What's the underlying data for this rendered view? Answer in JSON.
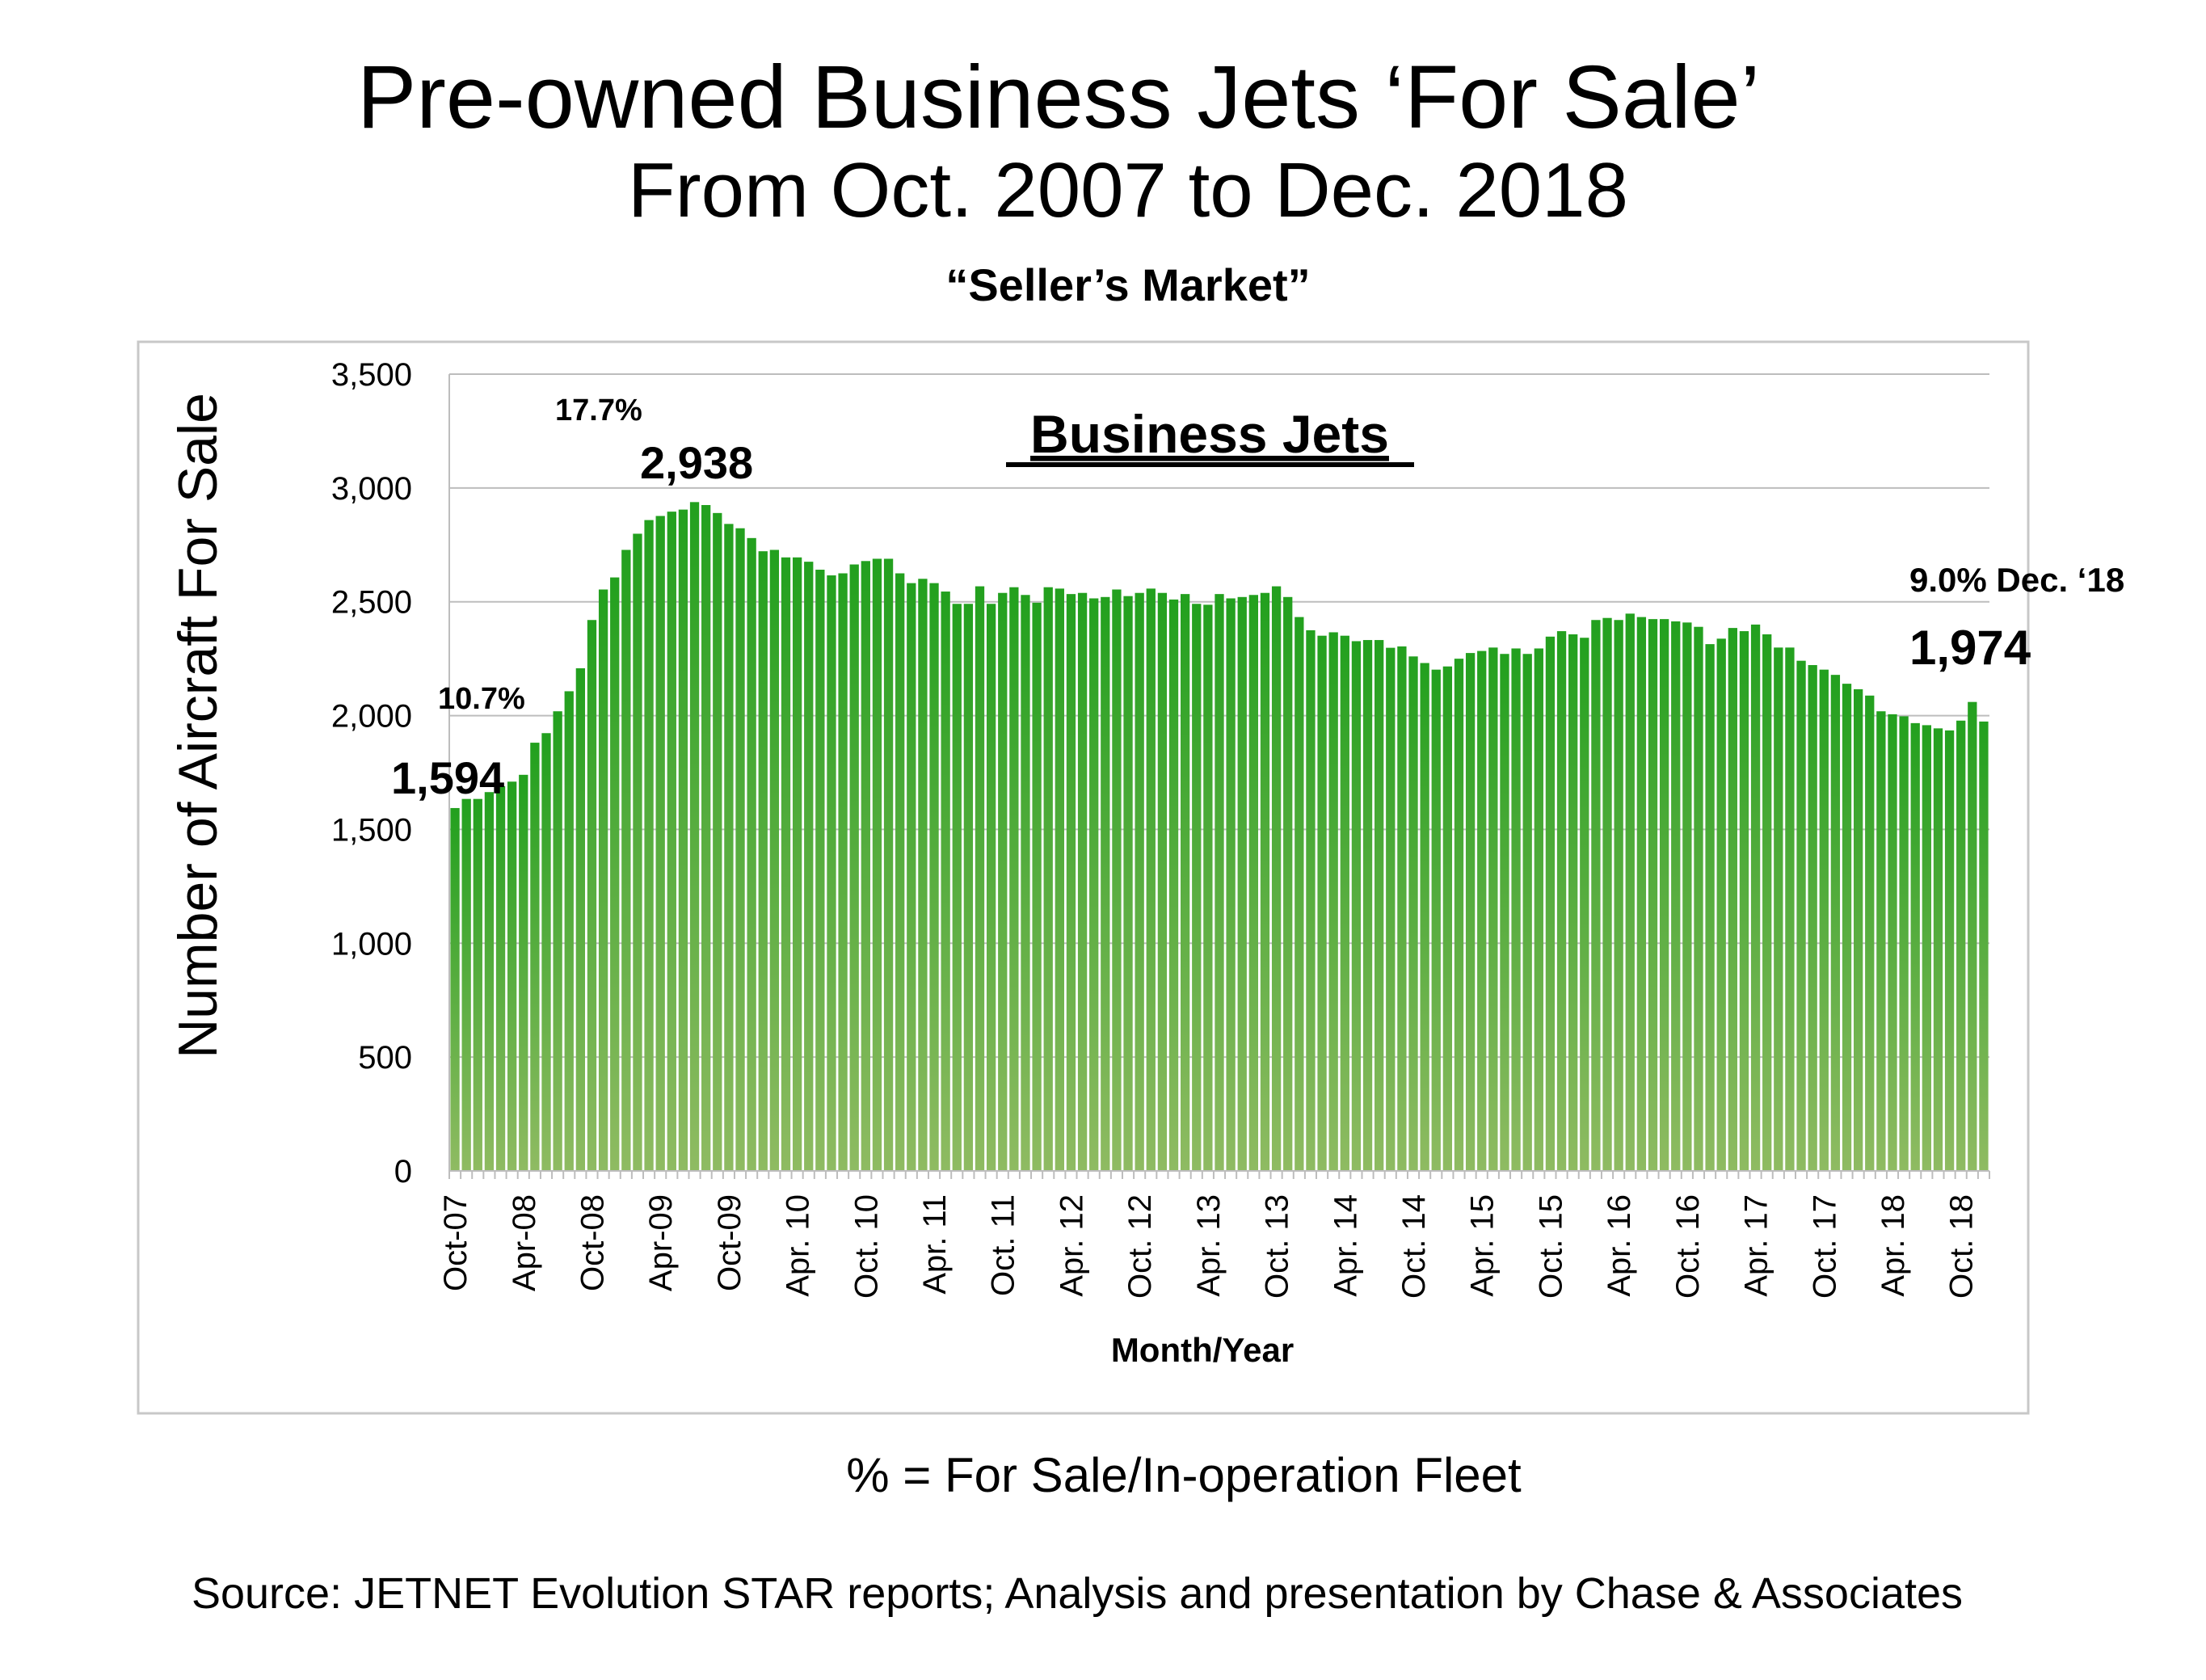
{
  "title": "Pre-owned Business Jets ‘For Sale’",
  "subtitle": "From Oct. 2007 to Dec. 2018",
  "tagline": "“Seller’s Market”",
  "footnote": "% = For Sale/In-operation Fleet",
  "source": "Source: JETNET Evolution STAR reports; Analysis and presentation by Chase & Associates",
  "chart_data": {
    "type": "bar",
    "title": "Business Jets",
    "xlabel": "Month/Year",
    "ylabel": "Number  of Aircraft For Sale",
    "ylim": [
      0,
      3500
    ],
    "yticks": [
      0,
      500,
      1000,
      1500,
      2000,
      2500,
      3000,
      3500
    ],
    "ytick_labels": [
      "0",
      "500",
      "1,000",
      "1,500",
      "2,000",
      "2,500",
      "3,000",
      "3,500"
    ],
    "grid": true,
    "bar_color_top": "#22a01e",
    "bar_color_bottom": "#8fbb62",
    "x_start": "Oct-07",
    "x_end": "Dec-18",
    "xtick_labels": [
      "Oct-07",
      "Apr-08",
      "Oct-08",
      "Apr-09",
      "Oct-09",
      "Apr. 10",
      "Oct. 10",
      "Apr. 11",
      "Oct. 11",
      "Apr. 12",
      "Oct. 12",
      "Apr. 13",
      "Oct. 13",
      "Apr. 14",
      "Oct. 14",
      "Apr. 15",
      "Oct. 15",
      "Apr. 16",
      "Oct. 16",
      "Apr. 17",
      "Oct. 17",
      "Apr. 18",
      "Oct. 18"
    ],
    "values": [
      1594,
      1634,
      1634,
      1664,
      1690,
      1710,
      1740,
      1881,
      1923,
      2019,
      2107,
      2208,
      2420,
      2554,
      2607,
      2728,
      2799,
      2859,
      2877,
      2896,
      2905,
      2938,
      2925,
      2890,
      2842,
      2823,
      2780,
      2722,
      2728,
      2695,
      2695,
      2676,
      2641,
      2616,
      2625,
      2664,
      2679,
      2689,
      2689,
      2625,
      2582,
      2601,
      2582,
      2545,
      2491,
      2491,
      2568,
      2491,
      2539,
      2564,
      2530,
      2496,
      2564,
      2558,
      2534,
      2539,
      2515,
      2521,
      2554,
      2525,
      2539,
      2558,
      2539,
      2510,
      2534,
      2491,
      2487,
      2534,
      2515,
      2521,
      2530,
      2539,
      2568,
      2521,
      2433,
      2375,
      2351,
      2366,
      2351,
      2327,
      2332,
      2332,
      2298,
      2304,
      2260,
      2231,
      2202,
      2216,
      2250,
      2275,
      2284,
      2299,
      2271,
      2295,
      2271,
      2295,
      2347,
      2371,
      2357,
      2342,
      2420,
      2429,
      2420,
      2448,
      2433,
      2424,
      2424,
      2414,
      2409,
      2390,
      2314,
      2338,
      2385,
      2371,
      2400,
      2357,
      2299,
      2299,
      2241,
      2222,
      2202,
      2179,
      2140,
      2116,
      2088,
      2019,
      2006,
      1997,
      1967,
      1958,
      1944,
      1935,
      1978,
      2060,
      1974
    ],
    "annotations": [
      {
        "text": "10.7%",
        "kind": "percent",
        "month": "Oct-07"
      },
      {
        "text": "1,594",
        "kind": "value",
        "month": "Oct-07"
      },
      {
        "text": "17.7%",
        "kind": "percent",
        "month": "Jul-09"
      },
      {
        "text": "2,938",
        "kind": "value",
        "month": "Jul-09"
      },
      {
        "text": "9.0% Dec. ‘18",
        "kind": "percent",
        "month": "Dec-18"
      },
      {
        "text": "1,974",
        "kind": "value",
        "month": "Dec-18"
      }
    ]
  }
}
